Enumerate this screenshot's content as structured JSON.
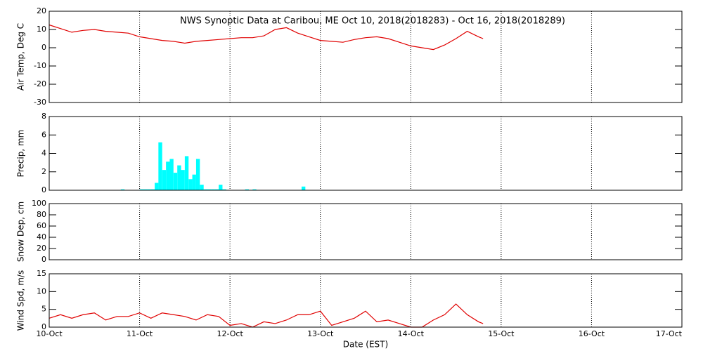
{
  "chart_data": [
    {
      "type": "line",
      "title": "NWS Synoptic Data at Caribou, ME   Oct 10, 2018(2018283) - Oct 16, 2018(2018289)",
      "ylabel": "Air Temp, Deg C",
      "color": "#e00000",
      "xlim": [
        0,
        7
      ],
      "ylim": [
        -30,
        20
      ],
      "yticks": [
        -30,
        -20,
        -10,
        0,
        10,
        20
      ],
      "x": [
        0,
        0.125,
        0.25,
        0.375,
        0.5,
        0.625,
        0.75,
        0.875,
        1.0,
        1.125,
        1.25,
        1.375,
        1.5,
        1.625,
        1.75,
        1.875,
        2.0,
        2.125,
        2.25,
        2.375,
        2.5,
        2.625,
        2.75,
        2.875,
        3.0,
        3.125,
        3.25,
        3.375,
        3.5,
        3.625,
        3.75,
        3.875,
        4.0,
        4.125,
        4.25,
        4.375,
        4.5,
        4.625,
        4.75,
        4.8
      ],
      "values": [
        12.5,
        10.5,
        8.5,
        9.5,
        10,
        9,
        8.5,
        8,
        6,
        5,
        4,
        3.5,
        2.5,
        3.5,
        4,
        4.5,
        5,
        5.5,
        5.5,
        6.5,
        10,
        11,
        8,
        6,
        4,
        3.5,
        3,
        4.5,
        5.5,
        6,
        5,
        3,
        1,
        0,
        -1,
        1.5,
        5,
        9,
        6,
        5
      ]
    },
    {
      "type": "bar",
      "ylabel": "Precip, mm",
      "color": "#00ffff",
      "xlim": [
        0,
        7
      ],
      "ylim": [
        0,
        8
      ],
      "yticks": [
        0,
        2,
        4,
        6,
        8
      ],
      "x": [
        0.813,
        1.021,
        1.063,
        1.104,
        1.146,
        1.188,
        1.229,
        1.271,
        1.313,
        1.354,
        1.396,
        1.438,
        1.479,
        1.521,
        1.563,
        1.604,
        1.646,
        1.688,
        1.729,
        1.771,
        1.813,
        1.854,
        1.896,
        1.938,
        2.188,
        2.271,
        2.813
      ],
      "values": [
        0.1,
        0.1,
        0.1,
        0.1,
        0.1,
        0.8,
        5.2,
        2.2,
        3.1,
        3.4,
        1.9,
        2.7,
        2.2,
        3.7,
        1.2,
        1.7,
        3.4,
        0.6,
        0.1,
        0.1,
        0.1,
        0.1,
        0.6,
        0.1,
        0.1,
        0.1,
        0.4
      ]
    },
    {
      "type": "line",
      "ylabel": "Snow Dep, cm",
      "color": "#e00000",
      "xlim": [
        0,
        7
      ],
      "ylim": [
        0,
        100
      ],
      "yticks": [
        0,
        20,
        40,
        60,
        80,
        100
      ],
      "x": [],
      "values": []
    },
    {
      "type": "line",
      "ylabel": "Wind Spd, m/s",
      "xlabel": "Date (EST)",
      "color": "#e00000",
      "xlim": [
        0,
        7
      ],
      "ylim": [
        0,
        15
      ],
      "yticks": [
        0,
        5,
        10,
        15
      ],
      "xticks": [
        {
          "value": 0,
          "label": "10-Oct"
        },
        {
          "value": 1,
          "label": "11-Oct"
        },
        {
          "value": 2,
          "label": "12-Oct"
        },
        {
          "value": 3,
          "label": "13-Oct"
        },
        {
          "value": 4,
          "label": "14-Oct"
        },
        {
          "value": 5,
          "label": "15-Oct"
        },
        {
          "value": 6,
          "label": "16-Oct"
        },
        {
          "value": 7,
          "label": "17-Oct"
        }
      ],
      "x": [
        0,
        0.125,
        0.25,
        0.375,
        0.5,
        0.625,
        0.75,
        0.875,
        1.0,
        1.125,
        1.25,
        1.375,
        1.5,
        1.625,
        1.75,
        1.875,
        2.0,
        2.125,
        2.25,
        2.375,
        2.5,
        2.625,
        2.75,
        2.875,
        3.0,
        3.125,
        3.25,
        3.375,
        3.5,
        3.625,
        3.75,
        3.875,
        4.0,
        4.125,
        4.25,
        4.375,
        4.5,
        4.625,
        4.75,
        4.8
      ],
      "values": [
        2.5,
        3.5,
        2.5,
        3.5,
        4,
        2,
        3,
        3,
        4,
        2.5,
        4,
        3.5,
        3,
        2,
        3.5,
        3,
        0.5,
        1,
        0,
        1.5,
        1,
        2,
        3.5,
        3.5,
        4.5,
        0.5,
        1.5,
        2.5,
        4.5,
        1.5,
        2,
        1,
        0,
        0,
        2,
        3.5,
        6.5,
        3.5,
        1.5,
        1
      ]
    }
  ]
}
